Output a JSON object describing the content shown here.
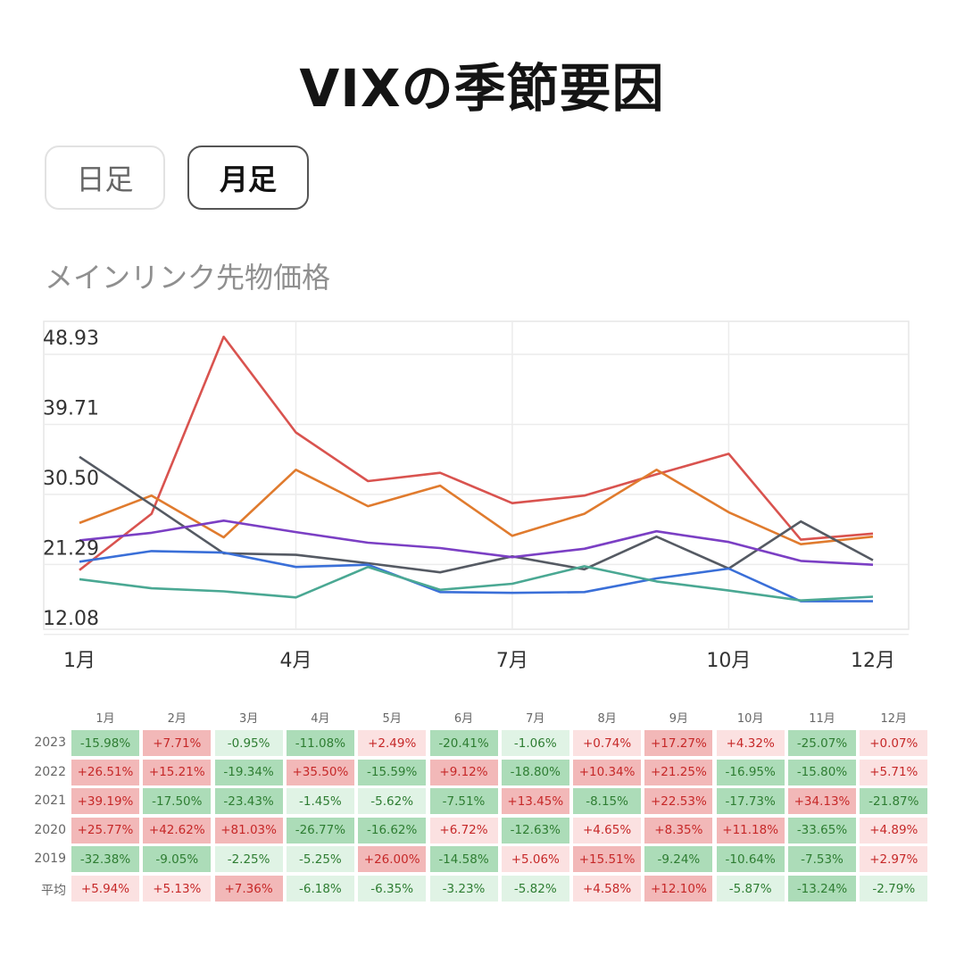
{
  "page": {
    "title": "VIXの季節要因",
    "tabs": [
      {
        "label": "日足",
        "active": false
      },
      {
        "label": "月足",
        "active": true
      }
    ],
    "subtitle": "メインリンク先物価格"
  },
  "chart_data": [
    {
      "type": "line",
      "x": [
        "1月",
        "2月",
        "3月",
        "4月",
        "5月",
        "6月",
        "7月",
        "8月",
        "9月",
        "10月",
        "11月",
        "12月"
      ],
      "xtick_labels": [
        "1月",
        "4月",
        "7月",
        "10月",
        "12月"
      ],
      "ytick_labels": [
        "48.93",
        "39.71",
        "30.50",
        "21.29",
        "12.08"
      ],
      "ylim": [
        11.7,
        48.93
      ],
      "grid": true,
      "series": [
        {
          "color": "#d9534f",
          "values": [
            18.2,
            25.6,
            48.9,
            36.3,
            29.9,
            31.0,
            27.0,
            28.0,
            30.8,
            33.5,
            22.2,
            23.0
          ]
        },
        {
          "color": "#e07b2e",
          "values": [
            24.4,
            28.0,
            22.5,
            31.4,
            26.6,
            29.3,
            22.7,
            25.6,
            31.4,
            25.8,
            21.6,
            22.6
          ]
        },
        {
          "color": "#555a63",
          "values": [
            33.1,
            26.8,
            20.4,
            20.2,
            19.1,
            17.9,
            20.0,
            18.3,
            22.6,
            18.4,
            24.6,
            19.5
          ]
        },
        {
          "color": "#7b3fc4",
          "values": [
            22.1,
            23.1,
            24.7,
            23.2,
            21.8,
            21.1,
            19.9,
            21.0,
            23.3,
            21.9,
            19.4,
            18.9
          ]
        },
        {
          "color": "#3a6fd8",
          "values": [
            19.3,
            20.7,
            20.5,
            18.6,
            18.9,
            15.3,
            15.2,
            15.3,
            17.1,
            18.4,
            14.1,
            14.1
          ]
        },
        {
          "color": "#4aa893",
          "values": [
            17.0,
            15.8,
            15.4,
            14.6,
            18.6,
            15.6,
            16.4,
            18.7,
            16.7,
            15.5,
            14.2,
            14.7
          ]
        }
      ]
    },
    {
      "type": "heatmap",
      "columns": [
        "1月",
        "2月",
        "3月",
        "4月",
        "5月",
        "6月",
        "7月",
        "8月",
        "9月",
        "10月",
        "11月",
        "12月"
      ],
      "rows": [
        {
          "label": "2023",
          "cells": [
            "-15.98%",
            "+7.71%",
            "-0.95%",
            "-11.08%",
            "+2.49%",
            "-20.41%",
            "-1.06%",
            "+0.74%",
            "+17.27%",
            "+4.32%",
            "-25.07%",
            "+0.07%"
          ]
        },
        {
          "label": "2022",
          "cells": [
            "+26.51%",
            "+15.21%",
            "-19.34%",
            "+35.50%",
            "-15.59%",
            "+9.12%",
            "-18.80%",
            "+10.34%",
            "+21.25%",
            "-16.95%",
            "-15.80%",
            "+5.71%"
          ]
        },
        {
          "label": "2021",
          "cells": [
            "+39.19%",
            "-17.50%",
            "-23.43%",
            "-1.45%",
            "-5.62%",
            "-7.51%",
            "+13.45%",
            "-8.15%",
            "+22.53%",
            "-17.73%",
            "+34.13%",
            "-21.87%"
          ]
        },
        {
          "label": "2020",
          "cells": [
            "+25.77%",
            "+42.62%",
            "+81.03%",
            "-26.77%",
            "-16.62%",
            "+6.72%",
            "-12.63%",
            "+4.65%",
            "+8.35%",
            "+11.18%",
            "-33.65%",
            "+4.89%"
          ]
        },
        {
          "label": "2019",
          "cells": [
            "-32.38%",
            "-9.05%",
            "-2.25%",
            "-5.25%",
            "+26.00%",
            "-14.58%",
            "+5.06%",
            "+15.51%",
            "-9.24%",
            "-10.64%",
            "-7.53%",
            "+2.97%"
          ]
        },
        {
          "label": "平均",
          "cells": [
            "+5.94%",
            "+5.13%",
            "+7.36%",
            "-6.18%",
            "-6.35%",
            "-3.23%",
            "-5.82%",
            "+4.58%",
            "+12.10%",
            "-5.87%",
            "-13.24%",
            "-2.79%"
          ]
        }
      ],
      "colors": {
        "positive_text": "#c62828",
        "negative_text": "#2e7d32",
        "positive_strong": "#f2b8b8",
        "positive_light": "#fbe1e1",
        "negative_strong": "#acdcb8",
        "negative_light": "#e0f3e5"
      }
    }
  ]
}
